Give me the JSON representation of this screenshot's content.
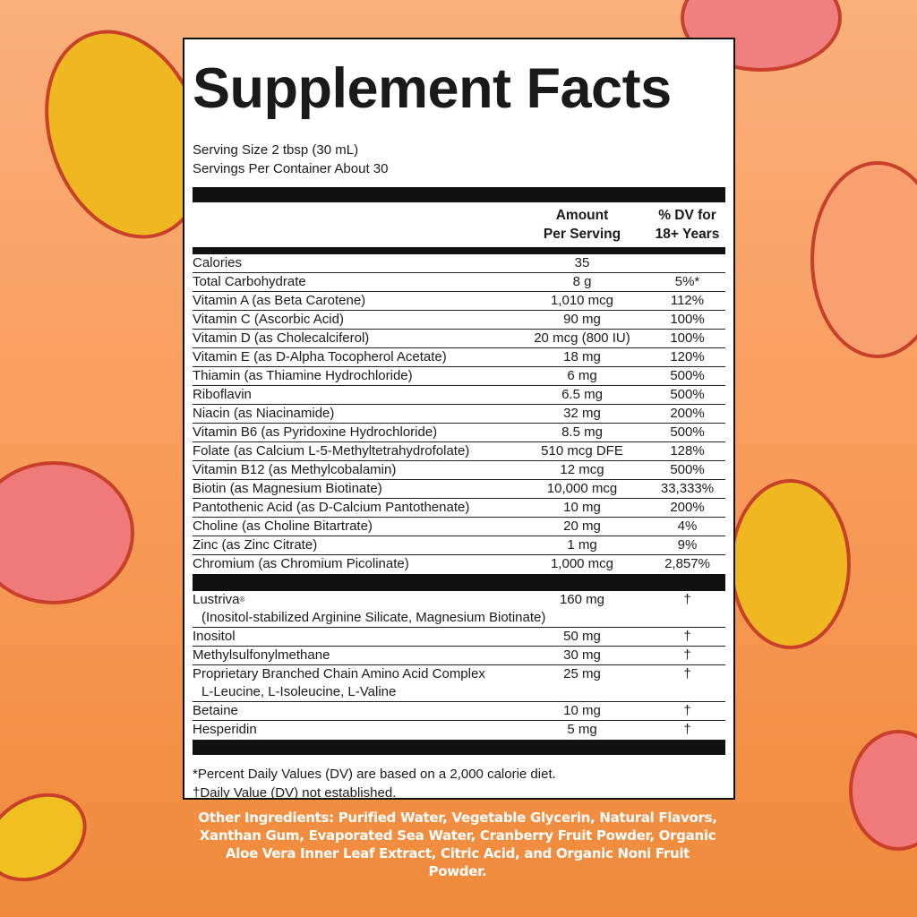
{
  "title": "Supplement Facts",
  "serving_size": "Serving Size 2 tbsp (30 mL)",
  "servings_per_container": "Servings Per Container About 30",
  "headers": {
    "amount_1": "Amount",
    "amount_2": "Per Serving",
    "dv_1": "% DV for",
    "dv_2": "18+ Years"
  },
  "nutrients": [
    {
      "name": "Calories",
      "amount": "35",
      "dv": ""
    },
    {
      "name": "Total Carbohydrate",
      "amount": "8 g",
      "dv": "5%*"
    },
    {
      "name": "Vitamin A (as Beta Carotene)",
      "amount": "1,010 mcg",
      "dv": "112%"
    },
    {
      "name": "Vitamin C (Ascorbic Acid)",
      "amount": "90 mg",
      "dv": "100%"
    },
    {
      "name": "Vitamin D (as Cholecalciferol)",
      "amount": "20 mcg (800 IU)",
      "dv": "100%"
    },
    {
      "name": "Vitamin E (as D-Alpha Tocopherol Acetate)",
      "amount": "18 mg",
      "dv": "120%"
    },
    {
      "name": "Thiamin (as Thiamine Hydrochloride)",
      "amount": "6 mg",
      "dv": "500%"
    },
    {
      "name": "Riboflavin",
      "amount": "6.5 mg",
      "dv": "500%"
    },
    {
      "name": "Niacin (as Niacinamide)",
      "amount": "32 mg",
      "dv": "200%"
    },
    {
      "name": "Vitamin B6 (as Pyridoxine Hydrochloride)",
      "amount": "8.5 mg",
      "dv": "500%"
    },
    {
      "name": "Folate (as Calcium L-5-Methyltetrahydrofolate)",
      "amount": "510 mcg DFE",
      "dv": "128%"
    },
    {
      "name": "Vitamin B12 (as Methylcobalamin)",
      "amount": "12 mcg",
      "dv": "500%"
    },
    {
      "name": "Biotin (as Magnesium Biotinate)",
      "amount": "10,000 mcg",
      "dv": "33,333%"
    },
    {
      "name": "Pantothenic Acid (as D-Calcium Pantothenate)",
      "amount": "10 mg",
      "dv": "200%"
    },
    {
      "name": "Choline (as Choline Bitartrate)",
      "amount": "20 mg",
      "dv": "4%"
    },
    {
      "name": "Zinc (as Zinc Citrate)",
      "amount": "1 mg",
      "dv": "9%"
    },
    {
      "name": "Chromium (as Chromium Picolinate)",
      "amount": "1,000 mcg",
      "dv": "2,857%"
    }
  ],
  "other_actives": [
    {
      "name": "Lustriva",
      "mark": "®",
      "sub": "(Inositol-stabilized Arginine Silicate, Magnesium Biotinate)",
      "amount": "160 mg",
      "dv": "†"
    },
    {
      "name": "Inositol",
      "amount": "50 mg",
      "dv": "†"
    },
    {
      "name": "Methylsulfonylmethane",
      "amount": "30 mg",
      "dv": "†"
    },
    {
      "name": "Proprietary Branched Chain Amino Acid Complex",
      "sub": "L-Leucine, L-Isoleucine, L-Valine",
      "amount": "25 mg",
      "dv": "†"
    },
    {
      "name": "Betaine",
      "amount": "10 mg",
      "dv": "†"
    },
    {
      "name": "Hesperidin",
      "amount": "5 mg",
      "dv": "†"
    }
  ],
  "footnotes": [
    "*Percent Daily Values (DV) are based on a 2,000 calorie diet.",
    "†Daily Value (DV) not established."
  ],
  "other_ingredients": "Other Ingredients: Purified Water, Vegetable Glycerin, Natural Flavors, Xanthan Gum, Evaporated Sea Water, Cranberry Fruit Powder, Organic Aloe Vera Inner Leaf Extract, Citric Acid, and Organic Noni Fruit Powder.",
  "colors": {
    "background_top": "#fbb07a",
    "background_bottom": "#f08a3a",
    "mango": "#f0b820",
    "peach": "#f07a7a",
    "outline": "#c8402a"
  }
}
